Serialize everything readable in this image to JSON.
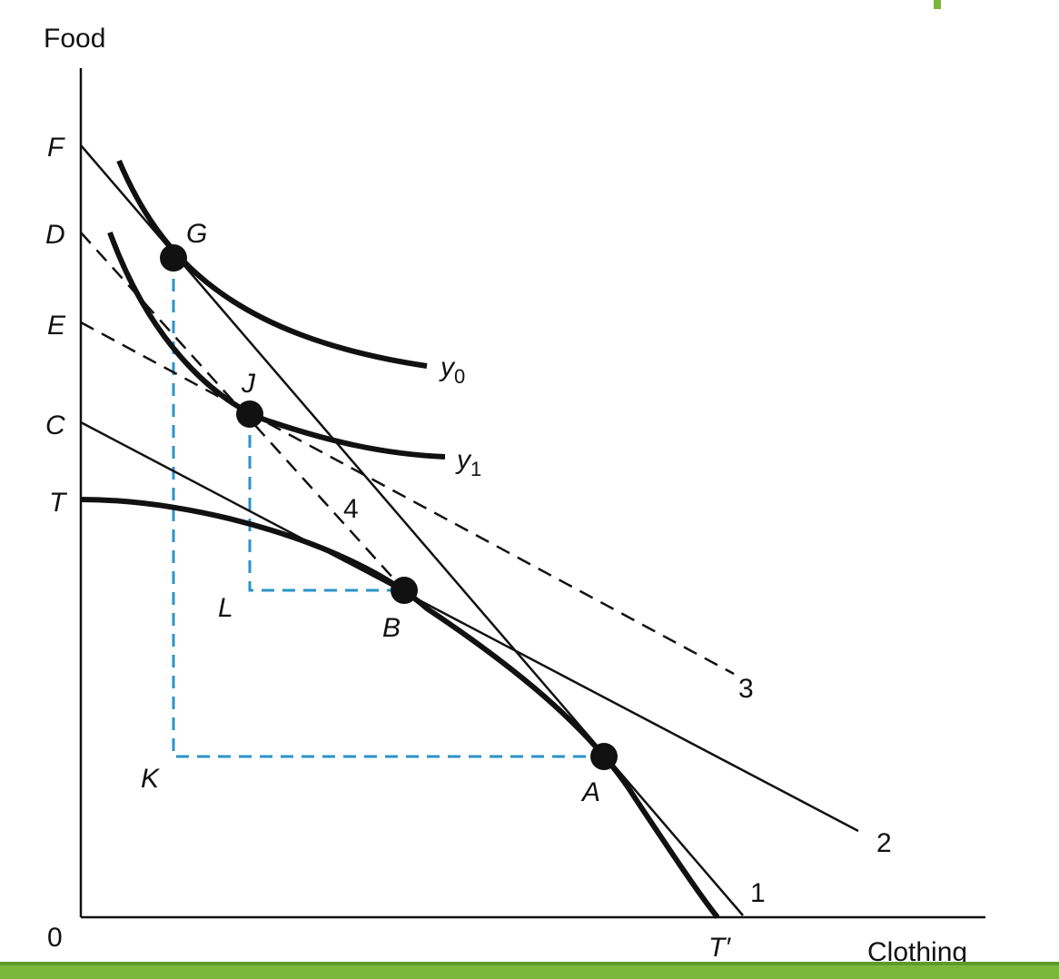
{
  "axes": {
    "y_label": "Food",
    "x_label": "Clothing",
    "origin": "0"
  },
  "intercepts": {
    "F": "F",
    "D": "D",
    "E": "E",
    "C": "C",
    "T": "T",
    "T_prime": "T′"
  },
  "points": {
    "G": "G",
    "J": "J",
    "B": "B",
    "A": "A",
    "L": "L",
    "K": "K"
  },
  "curves": {
    "y0": {
      "letter": "y",
      "sub": "0"
    },
    "y1": {
      "letter": "y",
      "sub": "1"
    }
  },
  "lines": {
    "l1": "1",
    "l2": "2",
    "l3": "3",
    "l4": "4"
  },
  "colors": {
    "ink": "#111111",
    "guide": "#2c93c8",
    "footer_green": "#7ab83c"
  }
}
